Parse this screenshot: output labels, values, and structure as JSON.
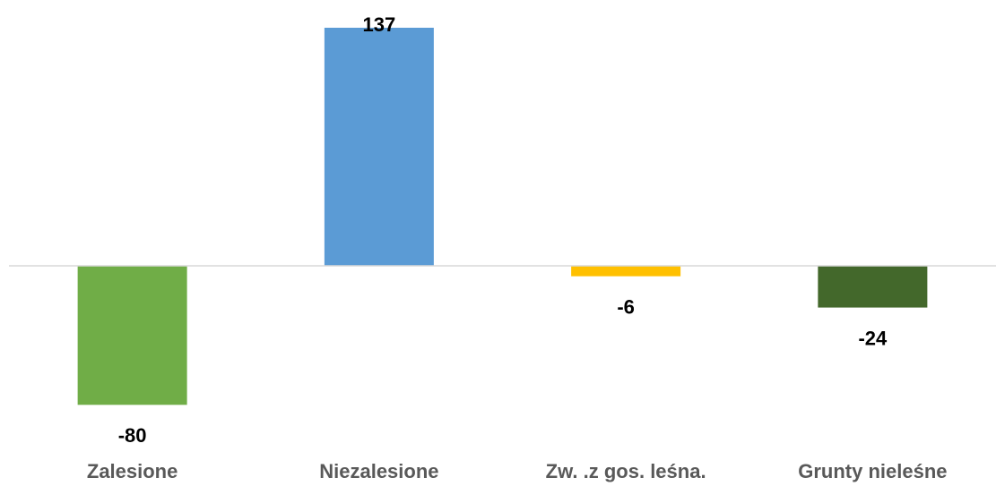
{
  "chart_data": {
    "type": "bar",
    "categories": [
      "Zalesione",
      "Niezalesione",
      "Zw. .z gos. leśna.",
      "Grunty nieleśne"
    ],
    "values": [
      -80,
      137,
      -6,
      -24
    ],
    "colors": [
      "#70ad47",
      "#5b9bd5",
      "#ffc000",
      "#43682b"
    ],
    "data_labels": true
  }
}
